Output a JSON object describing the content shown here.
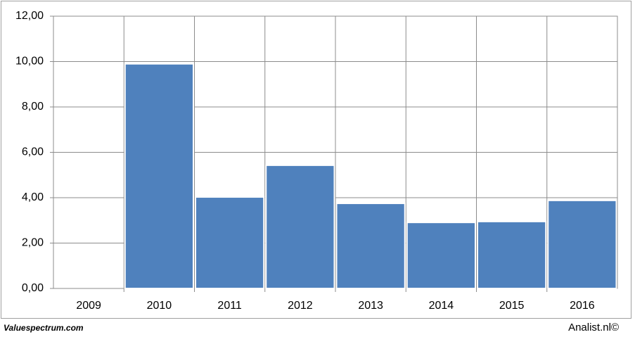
{
  "chart_data": {
    "type": "bar",
    "categories": [
      "2009",
      "2010",
      "2011",
      "2012",
      "2013",
      "2014",
      "2015",
      "2016"
    ],
    "values": [
      null,
      9.9,
      4.03,
      5.43,
      3.75,
      2.91,
      2.95,
      3.88
    ],
    "color": "#4f81bd",
    "ylim": [
      0,
      12
    ],
    "yticks": [
      {
        "value": 0,
        "label": "0,00"
      },
      {
        "value": 2,
        "label": "2,00"
      },
      {
        "value": 4,
        "label": "4,00"
      },
      {
        "value": 6,
        "label": "6,00"
      },
      {
        "value": 8,
        "label": "8,00"
      },
      {
        "value": 10,
        "label": "10,00"
      },
      {
        "value": 12,
        "label": "12,00"
      }
    ],
    "grid": true,
    "annotations": [
      "Valuespectrum.com",
      "Analist.nl©"
    ]
  }
}
